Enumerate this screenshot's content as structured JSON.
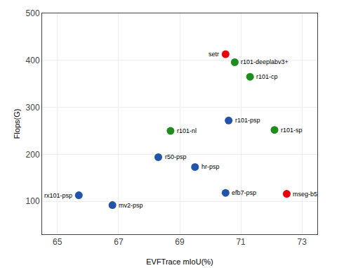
{
  "chart_data": {
    "type": "scatter",
    "labels": [
      "setr",
      "r101-deeplabv3+",
      "r101-cp",
      "r101-psp",
      "r101-nl",
      "r101-sp",
      "r50-psp",
      "hr-psp",
      "rx101-psp",
      "mv2-psp",
      "efb7-psp",
      "mseg-b5"
    ],
    "x": [
      70.5,
      70.8,
      71.3,
      70.6,
      68.7,
      72.1,
      68.3,
      69.5,
      65.7,
      66.8,
      70.5,
      72.5
    ],
    "values": [
      413,
      396,
      365,
      272,
      250,
      252,
      194,
      173,
      113,
      92,
      118,
      116
    ],
    "colors": [
      "#e8000d",
      "#1e8c1e",
      "#1e8c1e",
      "#2255aa",
      "#1e8c1e",
      "#1e8c1e",
      "#2255aa",
      "#2255aa",
      "#2255aa",
      "#2255aa",
      "#2255aa",
      "#e8000d"
    ],
    "xlim": [
      64.5,
      73.5
    ],
    "ylim": [
      30,
      500
    ],
    "xticks": [
      65,
      67,
      69,
      71,
      73
    ],
    "yticks": [
      100,
      200,
      300,
      400,
      500
    ],
    "xlabel": "EVFTrace mIoU(%)",
    "ylabel": "Flops(G)",
    "grid": true
  }
}
